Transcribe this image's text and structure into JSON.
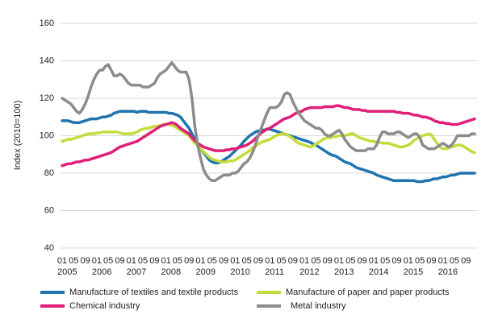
{
  "chart_data": {
    "type": "line",
    "y_label": "Index (2010=100)",
    "ylim": [
      40,
      160
    ],
    "yticks": [
      40,
      60,
      80,
      100,
      120,
      140,
      160
    ],
    "grid": true,
    "categories": [
      "01",
      null,
      null,
      null,
      "05",
      null,
      null,
      null,
      "09",
      null,
      null,
      null,
      "01",
      null,
      null,
      null,
      "05",
      null,
      null,
      null,
      "09",
      null,
      null,
      null,
      "01",
      null,
      null,
      null,
      "05",
      null,
      null,
      null,
      "09",
      null,
      null,
      null,
      "01",
      null,
      null,
      null,
      "05",
      null,
      null,
      null,
      "09",
      null,
      null,
      null,
      "01",
      null,
      null,
      null,
      "05",
      null,
      null,
      null,
      "09",
      null,
      null,
      null,
      "01",
      null,
      null,
      null,
      "05",
      null,
      null,
      null,
      "09",
      null,
      null,
      null,
      "01",
      null,
      null,
      null,
      "05",
      null,
      null,
      null,
      "09",
      null,
      null,
      null,
      "01",
      null,
      null,
      null,
      "05",
      null,
      null,
      null,
      "09",
      null,
      null,
      null,
      "01",
      null,
      null,
      null,
      "05",
      null,
      null,
      null,
      "09",
      null,
      null,
      null,
      "01",
      null,
      null,
      null,
      "05",
      null,
      null,
      null,
      "09",
      null,
      null,
      null,
      "01",
      null,
      null,
      null,
      "05",
      null,
      null,
      null,
      "09",
      null,
      null,
      null,
      "01",
      null,
      null,
      null,
      "05",
      null,
      null,
      null,
      "09",
      null,
      null,
      null
    ],
    "year_labels": [
      "2005",
      "2006",
      "2007",
      "2008",
      "2009",
      "2010",
      "2011",
      "2012",
      "2013",
      "2014",
      "2015",
      "2016"
    ],
    "series": [
      {
        "name": "Manufacture of textiles and textile products",
        "color": "#1f74ae",
        "values": [
          108,
          108,
          108,
          107.5,
          107,
          107,
          107,
          107.5,
          108,
          108.5,
          109,
          109,
          109,
          109.5,
          110,
          110,
          110.5,
          111,
          112,
          112.5,
          113,
          113,
          113,
          113,
          113,
          113,
          112.5,
          113,
          113,
          113,
          112.5,
          112.5,
          112.5,
          112.5,
          112.5,
          112.5,
          112.5,
          112,
          112,
          111.5,
          111,
          110,
          108,
          106,
          104,
          101,
          98,
          95,
          93,
          91,
          89,
          87,
          86,
          85.5,
          85.5,
          86,
          87,
          88,
          89,
          90.5,
          92,
          93.5,
          95,
          97,
          98.5,
          100,
          101,
          102,
          102.5,
          103,
          103,
          103.5,
          103.5,
          103,
          102.5,
          102,
          101.5,
          101,
          100.5,
          100,
          99.5,
          99,
          98.5,
          98,
          97.5,
          97,
          96.5,
          95.5,
          95,
          94,
          93,
          92,
          91,
          90,
          89.5,
          89,
          88,
          87,
          86,
          85.5,
          85,
          84,
          83,
          82.5,
          82,
          81.5,
          81,
          80.5,
          80,
          79,
          78.5,
          78,
          77.5,
          77,
          76.5,
          76,
          76,
          76,
          76,
          76,
          76,
          76,
          76,
          75.5,
          75.5,
          75.5,
          76,
          76,
          76.5,
          77,
          77,
          77.5,
          78,
          78,
          78.5,
          79,
          79,
          79.5,
          80,
          80,
          80,
          80,
          80,
          80
        ]
      },
      {
        "name": "Manufacture of paper and paper products",
        "color": "#c4db3b",
        "values": [
          97,
          97.5,
          98,
          98,
          98.5,
          99,
          99.5,
          100,
          100.5,
          101,
          101,
          101,
          101.5,
          101.5,
          102,
          102,
          102,
          102,
          102,
          102,
          101.5,
          101,
          101,
          101,
          101,
          101.5,
          102,
          103,
          103.5,
          104,
          104,
          104.5,
          105,
          105,
          105.5,
          106,
          106,
          106,
          105.5,
          105,
          104,
          103,
          102,
          101,
          100,
          98,
          96,
          94.5,
          93,
          91.5,
          90,
          88.5,
          87.5,
          87,
          86.5,
          86,
          86,
          86,
          86.5,
          86.5,
          87,
          88,
          89,
          90,
          91,
          92,
          93.5,
          94.5,
          95.5,
          96.5,
          97,
          97.5,
          98,
          99,
          100,
          100.5,
          101,
          101,
          100.5,
          99.5,
          98.5,
          97,
          96,
          95.5,
          95,
          94.5,
          94,
          94.5,
          95.5,
          96.5,
          97.5,
          98.5,
          99,
          99,
          99.5,
          99.5,
          100,
          100,
          100,
          100.5,
          101,
          101,
          100,
          99,
          98.5,
          98,
          97.5,
          97,
          97,
          96.5,
          96.5,
          96,
          96,
          96,
          95.5,
          95,
          94.5,
          94,
          94,
          94.5,
          95,
          96,
          97.5,
          98.5,
          99.5,
          100,
          100.5,
          101,
          100.5,
          98,
          96,
          94,
          93,
          93,
          93.5,
          94,
          94.5,
          95,
          95,
          94.5,
          93.5,
          92.5,
          91.5,
          91
        ]
      },
      {
        "name": "Chemical industry",
        "color": "#df1f78",
        "values": [
          84,
          84.5,
          85,
          85,
          85.5,
          86,
          86,
          86.5,
          87,
          87,
          87.5,
          88,
          88.5,
          89,
          89.5,
          90,
          90.5,
          91,
          92,
          93,
          94,
          94.5,
          95,
          95.5,
          96,
          96.5,
          97,
          98,
          99,
          100,
          101,
          102,
          103,
          104,
          105,
          105.5,
          106,
          106.5,
          107,
          106.5,
          105.5,
          104,
          103,
          102,
          101,
          99,
          97.5,
          96,
          95,
          94,
          93.5,
          93,
          92.5,
          92,
          92,
          92,
          92,
          92.5,
          92.5,
          93,
          93,
          93.5,
          94,
          94.5,
          95,
          96,
          97,
          98.5,
          100,
          101.5,
          102.5,
          103.5,
          104,
          105,
          106,
          107,
          108,
          109,
          109.5,
          110,
          111,
          112,
          112.5,
          113,
          114,
          114.5,
          115,
          115,
          115,
          115,
          115,
          115.5,
          115.5,
          115.5,
          115.5,
          116,
          116,
          115.5,
          115,
          115,
          114.5,
          114,
          114,
          114,
          113.5,
          113.5,
          113,
          113,
          113,
          113,
          113,
          113,
          113,
          113,
          113,
          113,
          112.5,
          112.5,
          112,
          112,
          112,
          111.5,
          111,
          111,
          110.5,
          110,
          110,
          109.5,
          109,
          108,
          107.5,
          107,
          107,
          106.5,
          106.5,
          106,
          106,
          106,
          106.5,
          107,
          107.5,
          108,
          108.5,
          109
        ]
      },
      {
        "name": "Metal industry",
        "color": "#8c8c8c",
        "values": [
          120,
          119,
          118,
          117,
          115,
          113,
          112,
          114,
          117,
          121,
          126,
          130,
          133,
          135,
          135,
          137,
          138,
          135,
          132,
          132,
          133,
          132,
          130,
          128,
          127,
          127,
          127,
          127,
          126,
          126,
          126,
          127,
          128,
          131,
          133,
          134,
          135,
          137,
          139,
          137,
          135,
          134,
          134,
          134,
          130,
          120,
          105,
          95,
          88,
          82,
          79,
          77,
          76,
          76,
          77,
          78,
          79,
          79,
          79,
          80,
          80,
          81,
          83,
          85,
          86,
          88,
          91,
          95,
          100,
          104,
          108,
          112,
          115,
          115,
          115,
          116,
          118,
          122,
          123,
          122,
          118,
          115,
          112,
          110,
          108,
          107,
          106,
          105,
          104,
          104,
          103,
          101,
          100,
          100,
          101,
          102,
          103,
          101,
          98,
          96,
          94,
          93,
          92,
          92,
          92,
          92,
          93,
          93,
          93,
          95,
          99,
          102,
          102,
          101,
          101,
          101,
          102,
          102,
          101,
          100,
          99,
          100,
          101,
          101,
          99,
          95,
          94,
          93,
          93,
          93,
          94,
          95,
          96,
          95,
          94,
          95,
          97,
          100,
          100,
          100,
          100,
          100,
          101,
          101
        ]
      }
    ]
  }
}
